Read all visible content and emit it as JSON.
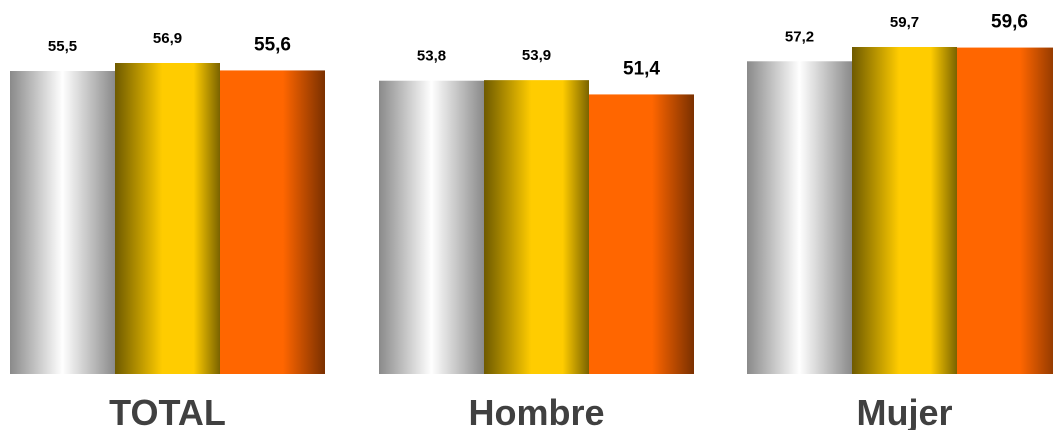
{
  "chart_data": {
    "type": "bar",
    "categories": [
      "TOTAL",
      "Hombre",
      "Mujer"
    ],
    "series": [
      {
        "values": [
          55.5,
          53.8,
          57.2
        ],
        "value_labels": [
          "55,5",
          "53,8",
          "57,2"
        ],
        "color": "#c0c0c0"
      },
      {
        "values": [
          56.9,
          53.9,
          59.7
        ],
        "value_labels": [
          "56,9",
          "53,9",
          "59,7"
        ],
        "color": "#ffcc00"
      },
      {
        "values": [
          55.6,
          51.4,
          59.6
        ],
        "value_labels": [
          "55,6",
          "51,4",
          "59,6"
        ],
        "color": "#ff6600"
      }
    ],
    "title": "",
    "xlabel": "",
    "ylabel": "",
    "grid": false,
    "legend": "none"
  }
}
